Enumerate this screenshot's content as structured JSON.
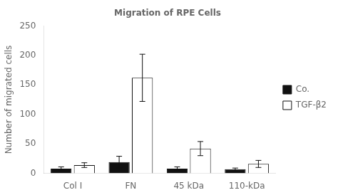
{
  "chart_data": {
    "type": "bar",
    "title": "Migration of RPE Cells",
    "ylabel": "Number of migrated cells",
    "categories": [
      "Col I",
      "FN",
      "45 kDa",
      "110-kDa"
    ],
    "series": [
      {
        "name": "Co.",
        "color": "#111111",
        "values": [
          8,
          19,
          8,
          7
        ],
        "errors": [
          3,
          10,
          3,
          2
        ]
      },
      {
        "name": "TGF-β2",
        "color": "#ffffff",
        "values": [
          14,
          162,
          42,
          16
        ],
        "errors": [
          4,
          40,
          12,
          6
        ]
      }
    ],
    "ylim": [
      0,
      250
    ],
    "yticks": [
      0,
      50,
      100,
      150,
      200,
      250
    ],
    "grid": false,
    "legend": "right"
  }
}
